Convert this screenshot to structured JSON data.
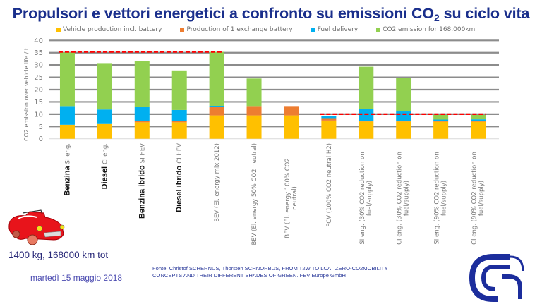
{
  "slide": {
    "title_main": "Propulsori e vettori energetici a confronto su emissioni CO",
    "title_sub": "2",
    "title_end": " su ciclo vita",
    "vehicle_info": "1400 kg, 168000 km tot",
    "date": "martedì 15 maggio 2018",
    "source_line1": "Fonte: Christof SCHERNUS, Thorsten SCHNORBUS, FROM T2W TO LCA –ZERO-CO2MOBILITY",
    "source_line2": "CONCEPTS AND THEIR DIFFERENT SHADES OF GREEN. FEV Europe GmbH",
    "car_icon": "red-convertible-car",
    "logo_icon": "cnr-logo"
  },
  "chart_data": {
    "type": "bar",
    "stacked": true,
    "title": "",
    "xlabel": "",
    "ylabel": "CO2 emission over vehicle life / t",
    "ylim": [
      0,
      40
    ],
    "yticks": [
      0,
      5,
      10,
      15,
      20,
      25,
      30,
      35,
      40
    ],
    "grid": true,
    "legend_position": "top",
    "categories": [
      {
        "bold": "Benzina",
        "small": [
          "SI eng."
        ]
      },
      {
        "bold": "Diesel",
        "small": [
          "CI eng."
        ]
      },
      {
        "bold": "Benzina ibrido",
        "small": [
          "SI HEV"
        ]
      },
      {
        "bold": "Diesel ibrido",
        "small": [
          "CI HEV"
        ]
      },
      {
        "bold": "",
        "small": [
          "BEV (El. energy mix 2012)"
        ]
      },
      {
        "bold": "",
        "small": [
          "BEV (El. energy 50% CO2 neutral)"
        ]
      },
      {
        "bold": "",
        "small": [
          "BEV (El. energy 100% CO2",
          "neutral)"
        ]
      },
      {
        "bold": "",
        "small": [
          "FCV (100% CO2 neutral H2)"
        ]
      },
      {
        "bold": "",
        "small": [
          "SI eng. (30% CO2 reduction on",
          "fuel/supply)"
        ]
      },
      {
        "bold": "",
        "small": [
          "CI eng. (30% CO2 reduction on",
          "fuel/supply)"
        ]
      },
      {
        "bold": "",
        "small": [
          "SI eng. (90% CO2 reduction on",
          "fuel/supply)"
        ]
      },
      {
        "bold": "",
        "small": [
          "CI eng. (90% CO2 reduction on",
          "fuel/supply)"
        ]
      }
    ],
    "series": [
      {
        "name": "Vehicle production incl. battery",
        "color": "#ffc000",
        "values": [
          5.7,
          6.0,
          6.7,
          6.7,
          9.5,
          9.5,
          9.5,
          7.4,
          7.0,
          7.0,
          6.9,
          6.9
        ]
      },
      {
        "name": "Production of 1 exchange battery",
        "color": "#ed7d31",
        "values": [
          0.0,
          0.0,
          0.4,
          0.4,
          3.6,
          3.8,
          3.8,
          0.7,
          0.2,
          0.2,
          0.2,
          0.3
        ]
      },
      {
        "name": "Fuel delivery",
        "color": "#00b0f0",
        "values": [
          7.6,
          5.9,
          6.0,
          4.6,
          0.3,
          0.0,
          0.0,
          1.0,
          5.0,
          3.9,
          0.7,
          0.7
        ]
      },
      {
        "name": "CO2 emission for 168.000km",
        "color": "#92d050",
        "values": [
          21.8,
          18.6,
          18.5,
          16.1,
          21.9,
          11.2,
          0.0,
          0.0,
          17.1,
          13.7,
          1.9,
          1.8
        ]
      }
    ],
    "reference_lines": [
      {
        "value": 35.3,
        "from_category": 0,
        "to_category": 4,
        "color": "#ff0000",
        "style": "dashed"
      },
      {
        "value": 10.0,
        "from_category": 7,
        "to_category": 11,
        "color": "#ff0000",
        "style": "dashed"
      }
    ]
  }
}
